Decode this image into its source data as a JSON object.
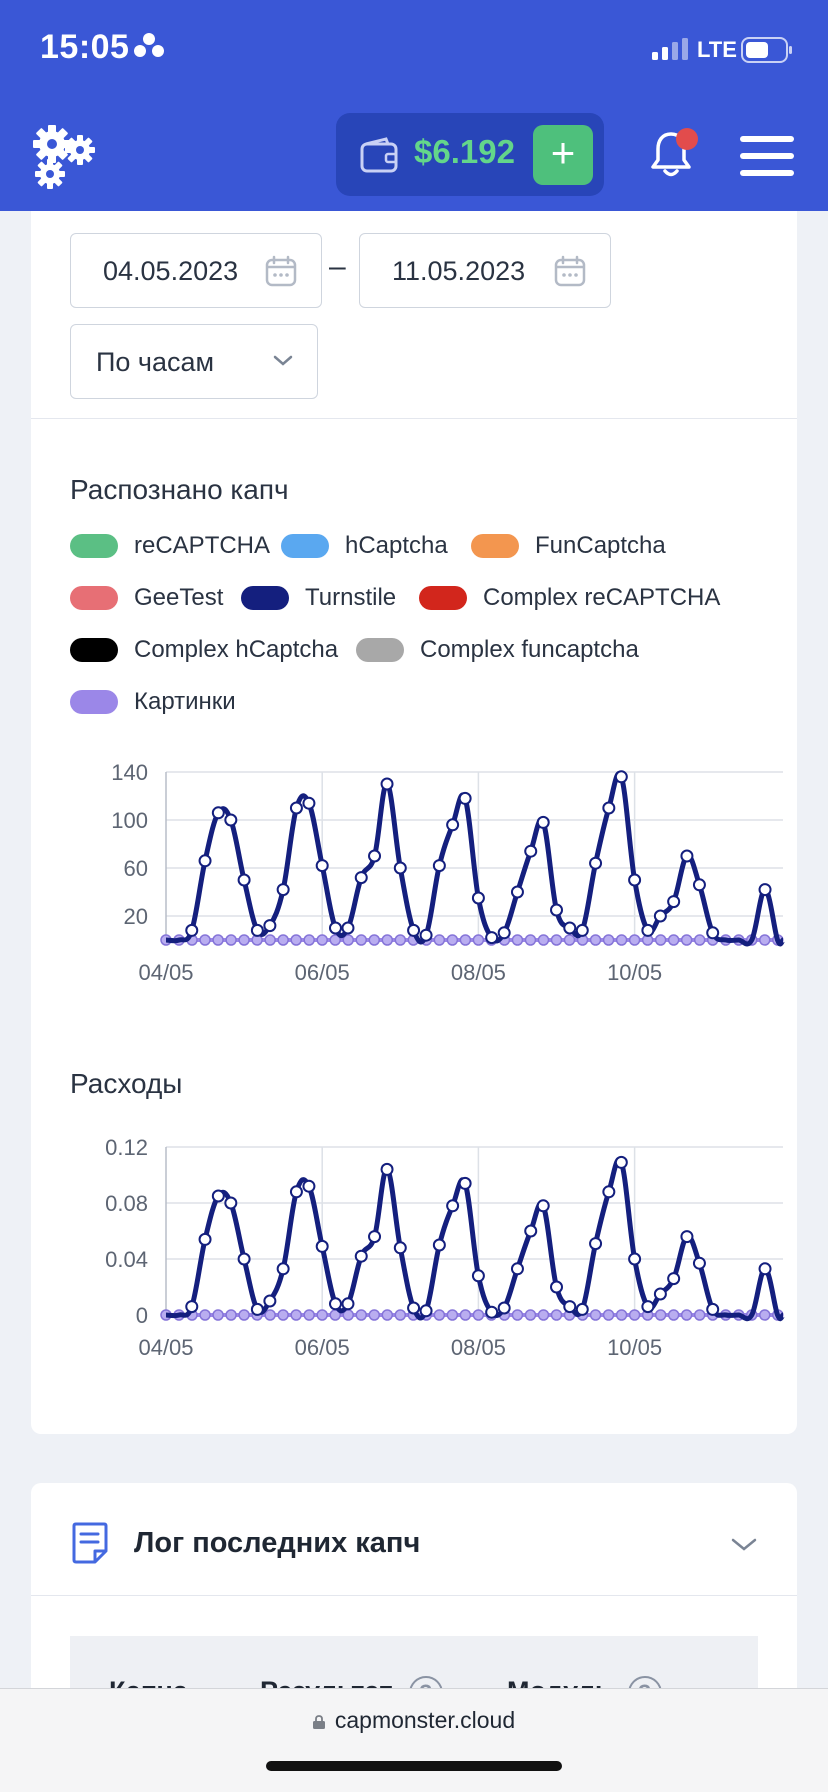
{
  "status": {
    "time": "15:05",
    "network": "LTE"
  },
  "header": {
    "balance": "$6.192",
    "add_label": "+"
  },
  "filters": {
    "date_from": "04.05.2023",
    "date_to": "11.05.2023",
    "separator": "–",
    "period": "По часам"
  },
  "captcha_chart": {
    "title": "Распознано капч"
  },
  "legend": [
    {
      "label": "reCAPTCHA",
      "color": "#5bbf84"
    },
    {
      "label": "hCaptcha",
      "color": "#5aa8f0"
    },
    {
      "label": "FunCaptcha",
      "color": "#f3964f"
    },
    {
      "label": "GeeTest",
      "color": "#e76f75"
    },
    {
      "label": "Turnstile",
      "color": "#141f7e"
    },
    {
      "label": "Complex reCAPTCHA",
      "color": "#d2261c"
    },
    {
      "label": "Complex hCaptcha",
      "color": "#000000"
    },
    {
      "label": "Complex funcaptcha",
      "color": "#a8a8a8"
    },
    {
      "label": "Картинки",
      "color": "#9b87e8"
    }
  ],
  "costs_chart": {
    "title": "Расходы"
  },
  "chart_data": [
    {
      "type": "line",
      "title": "Распознано капч",
      "xlabel": "",
      "ylabel": "",
      "x_ticks": [
        "04/05",
        "06/05",
        "08/05",
        "10/05"
      ],
      "y_ticks": [
        "20",
        "60",
        "100",
        "140"
      ],
      "ylim": [
        0,
        140
      ],
      "x_range_days": [
        0,
        7.9
      ],
      "grid": true,
      "series": [
        {
          "name": "Turnstile",
          "color": "#141f7e",
          "points": [
            [
              0,
              0
            ],
            [
              0.17,
              0
            ],
            [
              0.33,
              8
            ],
            [
              0.5,
              66
            ],
            [
              0.67,
              106
            ],
            [
              0.83,
              100
            ],
            [
              1.0,
              50
            ],
            [
              1.17,
              8
            ],
            [
              1.33,
              12
            ],
            [
              1.5,
              42
            ],
            [
              1.67,
              110
            ],
            [
              1.83,
              114
            ],
            [
              2.0,
              62
            ],
            [
              2.17,
              10
            ],
            [
              2.33,
              10
            ],
            [
              2.5,
              52
            ],
            [
              2.67,
              70
            ],
            [
              2.83,
              130
            ],
            [
              3.0,
              60
            ],
            [
              3.17,
              8
            ],
            [
              3.33,
              4
            ],
            [
              3.5,
              62
            ],
            [
              3.67,
              96
            ],
            [
              3.83,
              118
            ],
            [
              4.0,
              35
            ],
            [
              4.17,
              2
            ],
            [
              4.33,
              6
            ],
            [
              4.5,
              40
            ],
            [
              4.67,
              74
            ],
            [
              4.83,
              98
            ],
            [
              5.0,
              25
            ],
            [
              5.17,
              10
            ],
            [
              5.33,
              8
            ],
            [
              5.5,
              64
            ],
            [
              5.67,
              110
            ],
            [
              5.83,
              136
            ],
            [
              6.0,
              50
            ],
            [
              6.17,
              8
            ],
            [
              6.33,
              20
            ],
            [
              6.5,
              32
            ],
            [
              6.67,
              70
            ],
            [
              6.83,
              46
            ],
            [
              7.0,
              6
            ],
            [
              7.17,
              0
            ],
            [
              7.33,
              0
            ],
            [
              7.5,
              0
            ],
            [
              7.67,
              42
            ],
            [
              7.83,
              0
            ],
            [
              7.9,
              0
            ]
          ]
        },
        {
          "name": "Картинки",
          "color": "#9b87e8",
          "points": "flat-zero"
        }
      ]
    },
    {
      "type": "line",
      "title": "Расходы",
      "xlabel": "",
      "ylabel": "",
      "x_ticks": [
        "04/05",
        "06/05",
        "08/05",
        "10/05"
      ],
      "y_ticks": [
        "0",
        "0.04",
        "0.08",
        "0.12"
      ],
      "ylim": [
        0,
        0.12
      ],
      "x_range_days": [
        0,
        7.9
      ],
      "grid": true,
      "series": [
        {
          "name": "Turnstile",
          "color": "#141f7e",
          "points": [
            [
              0,
              0
            ],
            [
              0.17,
              0
            ],
            [
              0.33,
              0.006
            ],
            [
              0.5,
              0.054
            ],
            [
              0.67,
              0.085
            ],
            [
              0.83,
              0.08
            ],
            [
              1.0,
              0.04
            ],
            [
              1.17,
              0.004
            ],
            [
              1.33,
              0.01
            ],
            [
              1.5,
              0.033
            ],
            [
              1.67,
              0.088
            ],
            [
              1.83,
              0.092
            ],
            [
              2.0,
              0.049
            ],
            [
              2.17,
              0.008
            ],
            [
              2.33,
              0.008
            ],
            [
              2.5,
              0.042
            ],
            [
              2.67,
              0.056
            ],
            [
              2.83,
              0.104
            ],
            [
              3.0,
              0.048
            ],
            [
              3.17,
              0.005
            ],
            [
              3.33,
              0.003
            ],
            [
              3.5,
              0.05
            ],
            [
              3.67,
              0.078
            ],
            [
              3.83,
              0.094
            ],
            [
              4.0,
              0.028
            ],
            [
              4.17,
              0.002
            ],
            [
              4.33,
              0.005
            ],
            [
              4.5,
              0.033
            ],
            [
              4.67,
              0.06
            ],
            [
              4.83,
              0.078
            ],
            [
              5.0,
              0.02
            ],
            [
              5.17,
              0.006
            ],
            [
              5.33,
              0.004
            ],
            [
              5.5,
              0.051
            ],
            [
              5.67,
              0.088
            ],
            [
              5.83,
              0.109
            ],
            [
              6.0,
              0.04
            ],
            [
              6.17,
              0.006
            ],
            [
              6.33,
              0.015
            ],
            [
              6.5,
              0.026
            ],
            [
              6.67,
              0.056
            ],
            [
              6.83,
              0.037
            ],
            [
              7.0,
              0.004
            ],
            [
              7.17,
              0
            ],
            [
              7.33,
              0
            ],
            [
              7.5,
              0
            ],
            [
              7.67,
              0.033
            ],
            [
              7.83,
              0
            ],
            [
              7.9,
              0
            ]
          ]
        },
        {
          "name": "Картинки",
          "color": "#9b87e8",
          "points": "flat-zero"
        }
      ]
    }
  ],
  "log": {
    "title": "Лог последних капч",
    "columns": [
      "Капча",
      "Результат",
      "Модуль"
    ],
    "help_glyph": "?"
  },
  "browser": {
    "url": "capmonster.cloud"
  }
}
